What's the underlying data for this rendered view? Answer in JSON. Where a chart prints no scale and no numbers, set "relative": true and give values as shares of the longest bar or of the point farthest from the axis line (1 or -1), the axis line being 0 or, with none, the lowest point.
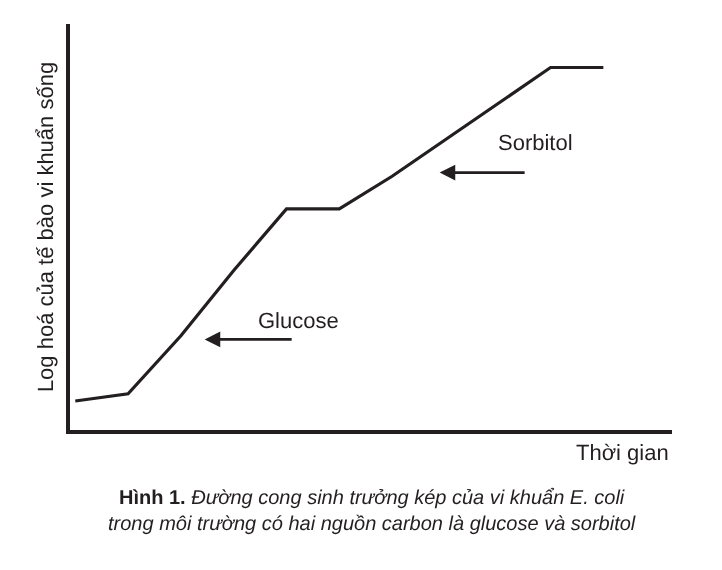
{
  "chart_data": {
    "type": "line",
    "relative": true,
    "xlabel": "Thời gian",
    "ylabel": "Log hoá của tế bào vi khuẩn sống",
    "categories": [
      null,
      null,
      null,
      null,
      null,
      null,
      null,
      null,
      null,
      null,
      null
    ],
    "series": [
      {
        "color": "#231f20",
        "values": [
          0.08,
          0.1,
          0.26,
          0.44,
          0.61,
          0.61,
          0.7,
          0.8,
          0.9,
          1,
          1
        ]
      }
    ],
    "annotations": [
      "Glucose",
      "Sorbitol",
      "Hình 1.",
      "Đường cong sinh trưởng kép của vi khuẩn E. coli\ntrong môi trường có hai nguồn carbon là glucose và sorbitol"
    ],
    "legend": false,
    "marker": "none",
    "line_style": "solid"
  }
}
